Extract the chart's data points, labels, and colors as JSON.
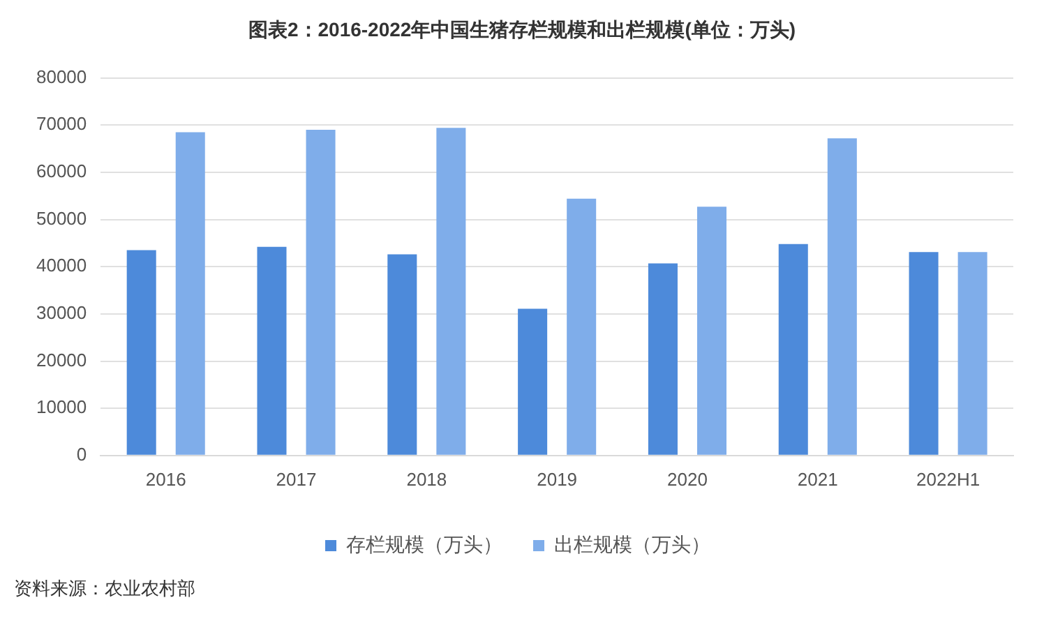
{
  "chart_data": {
    "type": "bar",
    "title": "图表2：2016-2022年中国生猪存栏规模和出栏规模(单位：万头)",
    "categories": [
      "2016",
      "2017",
      "2018",
      "2019",
      "2020",
      "2021",
      "2022H1"
    ],
    "series": [
      {
        "name": "存栏规模（万头）",
        "color": "#4d8ada",
        "values": [
          43500,
          44200,
          42600,
          31100,
          40700,
          44800,
          43100
        ]
      },
      {
        "name": "出栏规模（万头）",
        "color": "#7fadea",
        "values": [
          68500,
          69000,
          69400,
          54400,
          52700,
          67200,
          43100
        ]
      }
    ],
    "ylim": [
      0,
      80000
    ],
    "yticks": [
      0,
      10000,
      20000,
      30000,
      40000,
      50000,
      60000,
      70000,
      80000
    ],
    "grid": "y",
    "legend": "bottom",
    "annotations": [
      "资料来源：农业农村部"
    ]
  }
}
